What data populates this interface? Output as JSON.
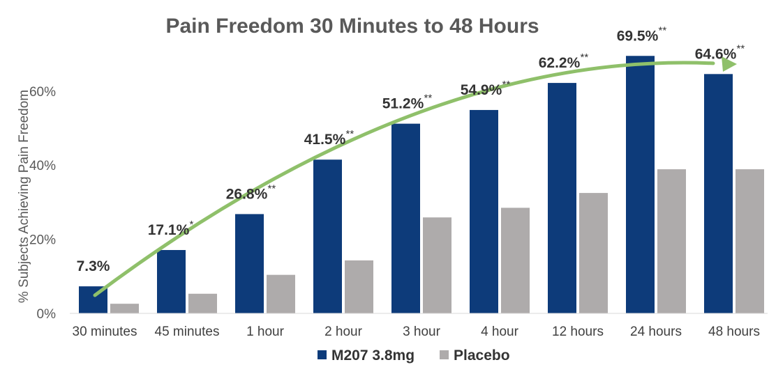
{
  "chart_data": {
    "type": "bar",
    "title": "Pain Freedom 30 Minutes to 48 Hours",
    "ylabel": "% Subjects Achieving Pain Freedom",
    "xlabel": "",
    "ylim": [
      0,
      72
    ],
    "yticks": [
      0,
      20,
      40,
      60
    ],
    "ytick_labels": [
      "0%",
      "20%",
      "40%",
      "60%"
    ],
    "categories": [
      "30 minutes",
      "45 minutes",
      "1 hour",
      "2 hour",
      "3 hour",
      "4 hour",
      "12 hours",
      "24 hours",
      "48 hours"
    ],
    "series": [
      {
        "name": "M207 3.8mg",
        "color": "#0d3b7a",
        "values": [
          7.3,
          17.1,
          26.8,
          41.5,
          51.2,
          54.9,
          62.2,
          69.5,
          64.6
        ],
        "labels": [
          "7.3%",
          "17.1%",
          "26.8%",
          "41.5%",
          "51.2%",
          "54.9%",
          "62.2%",
          "69.5%",
          "64.6%"
        ],
        "significance": [
          "",
          "*",
          "**",
          "**",
          "**",
          "**",
          "**",
          "**",
          "**"
        ]
      },
      {
        "name": "Placebo",
        "color": "#aeabab",
        "values": [
          2.6,
          5.3,
          10.4,
          14.3,
          25.9,
          28.5,
          32.5,
          38.9,
          38.9
        ]
      }
    ],
    "trend_arrow": {
      "color": "#8fc06a"
    },
    "grid": false,
    "legend": "bottom-center"
  }
}
